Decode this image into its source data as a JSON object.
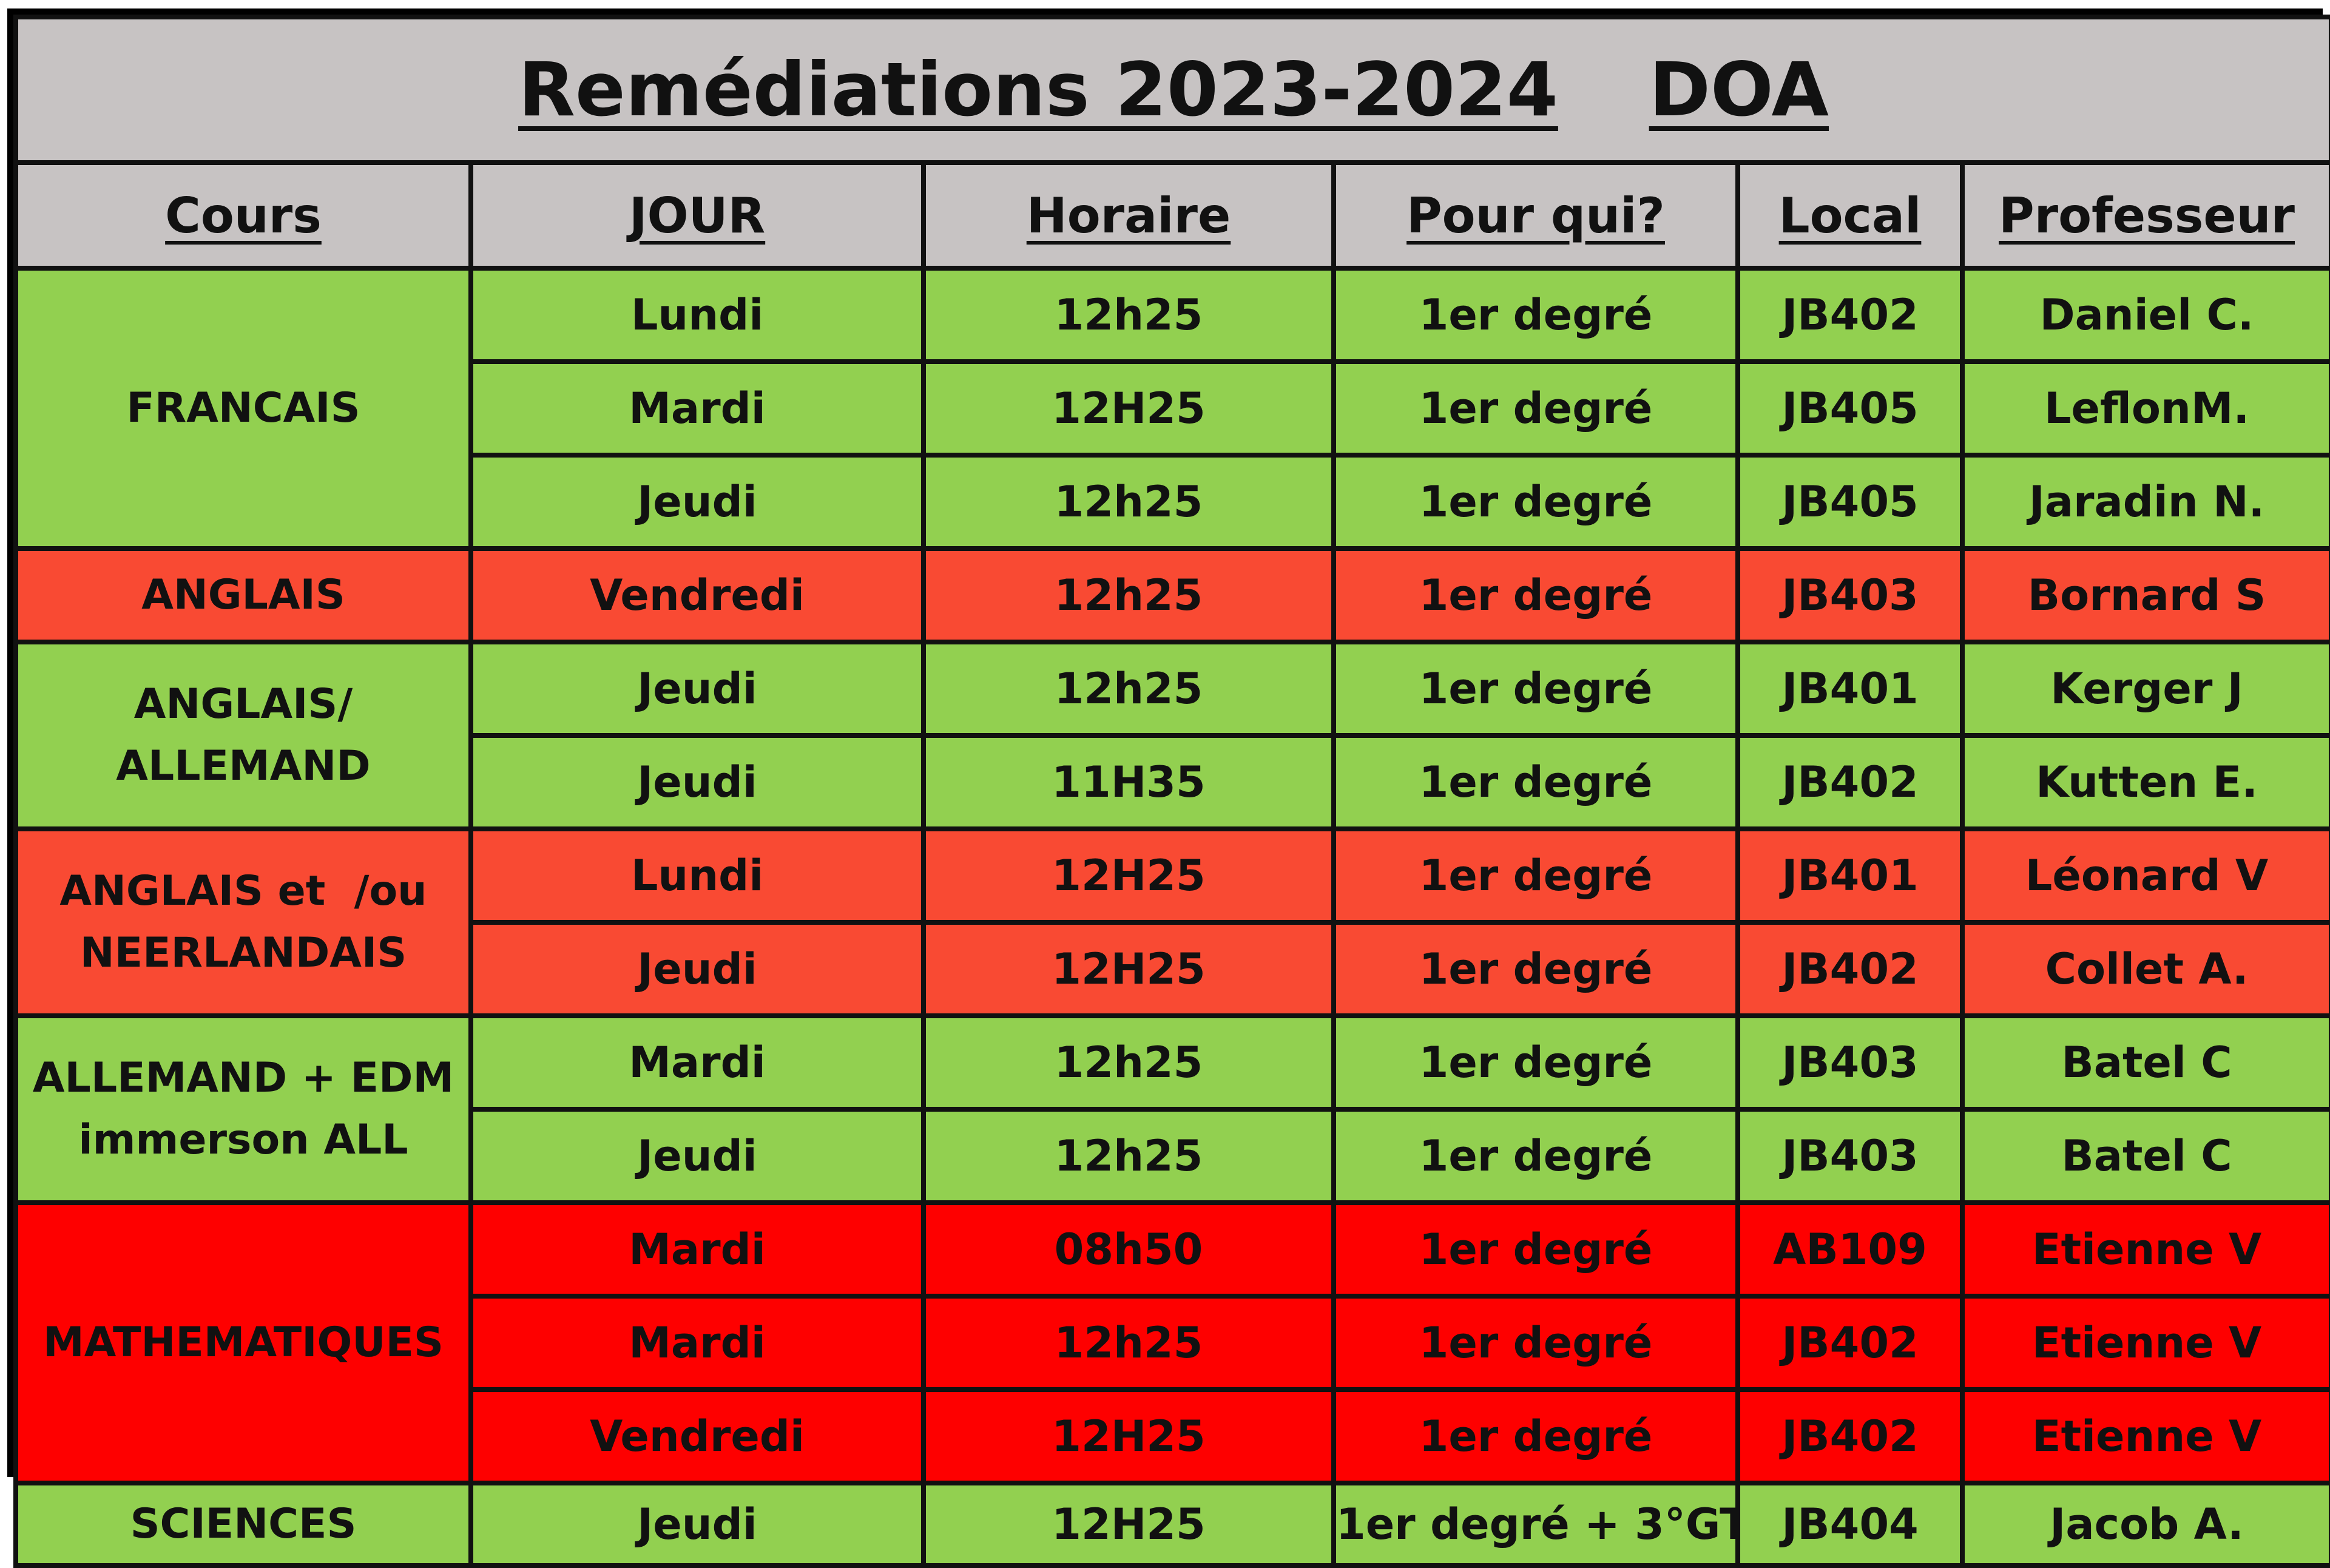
{
  "title": "Remédiations 2023-2024",
  "title_suffix": "DOA",
  "headers": {
    "cours": "Cours",
    "jour": "JOUR",
    "horaire": "Horaire",
    "pour_qui": "Pour qui?",
    "local": "Local",
    "professeur": "Professeur"
  },
  "colors": {
    "green": "#92d050",
    "orange_red": "#f94a33",
    "red": "#fe0000",
    "header_gray": "#c7c3c3"
  },
  "groups": [
    {
      "cours": "FRANCAIS",
      "rows": [
        {
          "jour": "Lundi",
          "horaire": "12h25",
          "pour_qui": "1er degré",
          "local": "JB402",
          "professeur": "Daniel C."
        },
        {
          "jour": "Mardi",
          "horaire": "12H25",
          "pour_qui": "1er degré",
          "local": "JB405",
          "professeur": "LeflonM."
        },
        {
          "jour": "Jeudi",
          "horaire": "12h25",
          "pour_qui": "1er degré",
          "local": "JB405",
          "professeur": "Jaradin N."
        }
      ]
    },
    {
      "cours": "ANGLAIS",
      "rows": [
        {
          "jour": "Vendredi",
          "horaire": "12h25",
          "pour_qui": "1er degré",
          "local": "JB403",
          "professeur": "Bornard S"
        }
      ]
    },
    {
      "cours_line1": "ANGLAIS/",
      "cours_line2": "ALLEMAND",
      "rows": [
        {
          "jour": "Jeudi",
          "horaire": "12h25",
          "pour_qui": "1er degré",
          "local": "JB401",
          "professeur": "Kerger J"
        },
        {
          "jour": "Jeudi",
          "horaire": "11H35",
          "pour_qui": "1er degré",
          "local": "JB402",
          "professeur": "Kutten E."
        }
      ]
    },
    {
      "cours_line1": "ANGLAIS et  /ou",
      "cours_line2": "NEERLANDAIS",
      "rows": [
        {
          "jour": "Lundi",
          "horaire": "12H25",
          "pour_qui": "1er degré",
          "local": "JB401",
          "professeur": "Léonard V"
        },
        {
          "jour": "Jeudi",
          "horaire": "12H25",
          "pour_qui": "1er degré",
          "local": "JB402",
          "professeur": "Collet A."
        }
      ]
    },
    {
      "cours_line1": "ALLEMAND + EDM",
      "cours_line2": "immerson ALL",
      "rows": [
        {
          "jour": "Mardi",
          "horaire": "12h25",
          "pour_qui": "1er degré",
          "local": "JB403",
          "professeur": "Batel C"
        },
        {
          "jour": "Jeudi",
          "horaire": "12h25",
          "pour_qui": "1er degré",
          "local": "JB403",
          "professeur": "Batel C"
        }
      ]
    },
    {
      "cours": "MATHEMATIQUES",
      "rows": [
        {
          "jour": "Mardi",
          "horaire": "08h50",
          "pour_qui": "1er degré",
          "local": "AB109",
          "professeur": "Etienne V"
        },
        {
          "jour": "Mardi",
          "horaire": "12h25",
          "pour_qui": "1er degré",
          "local": "JB402",
          "professeur": "Etienne V"
        },
        {
          "jour": "Vendredi",
          "horaire": "12H25",
          "pour_qui": "1er degré",
          "local": "JB402",
          "professeur": "Etienne V"
        }
      ]
    },
    {
      "cours": "SCIENCES",
      "rows": [
        {
          "jour": "Jeudi",
          "horaire": "12H25",
          "pour_qui": "1er degré + 3°GT",
          "local": "JB404",
          "professeur": "Jacob A."
        }
      ]
    }
  ]
}
